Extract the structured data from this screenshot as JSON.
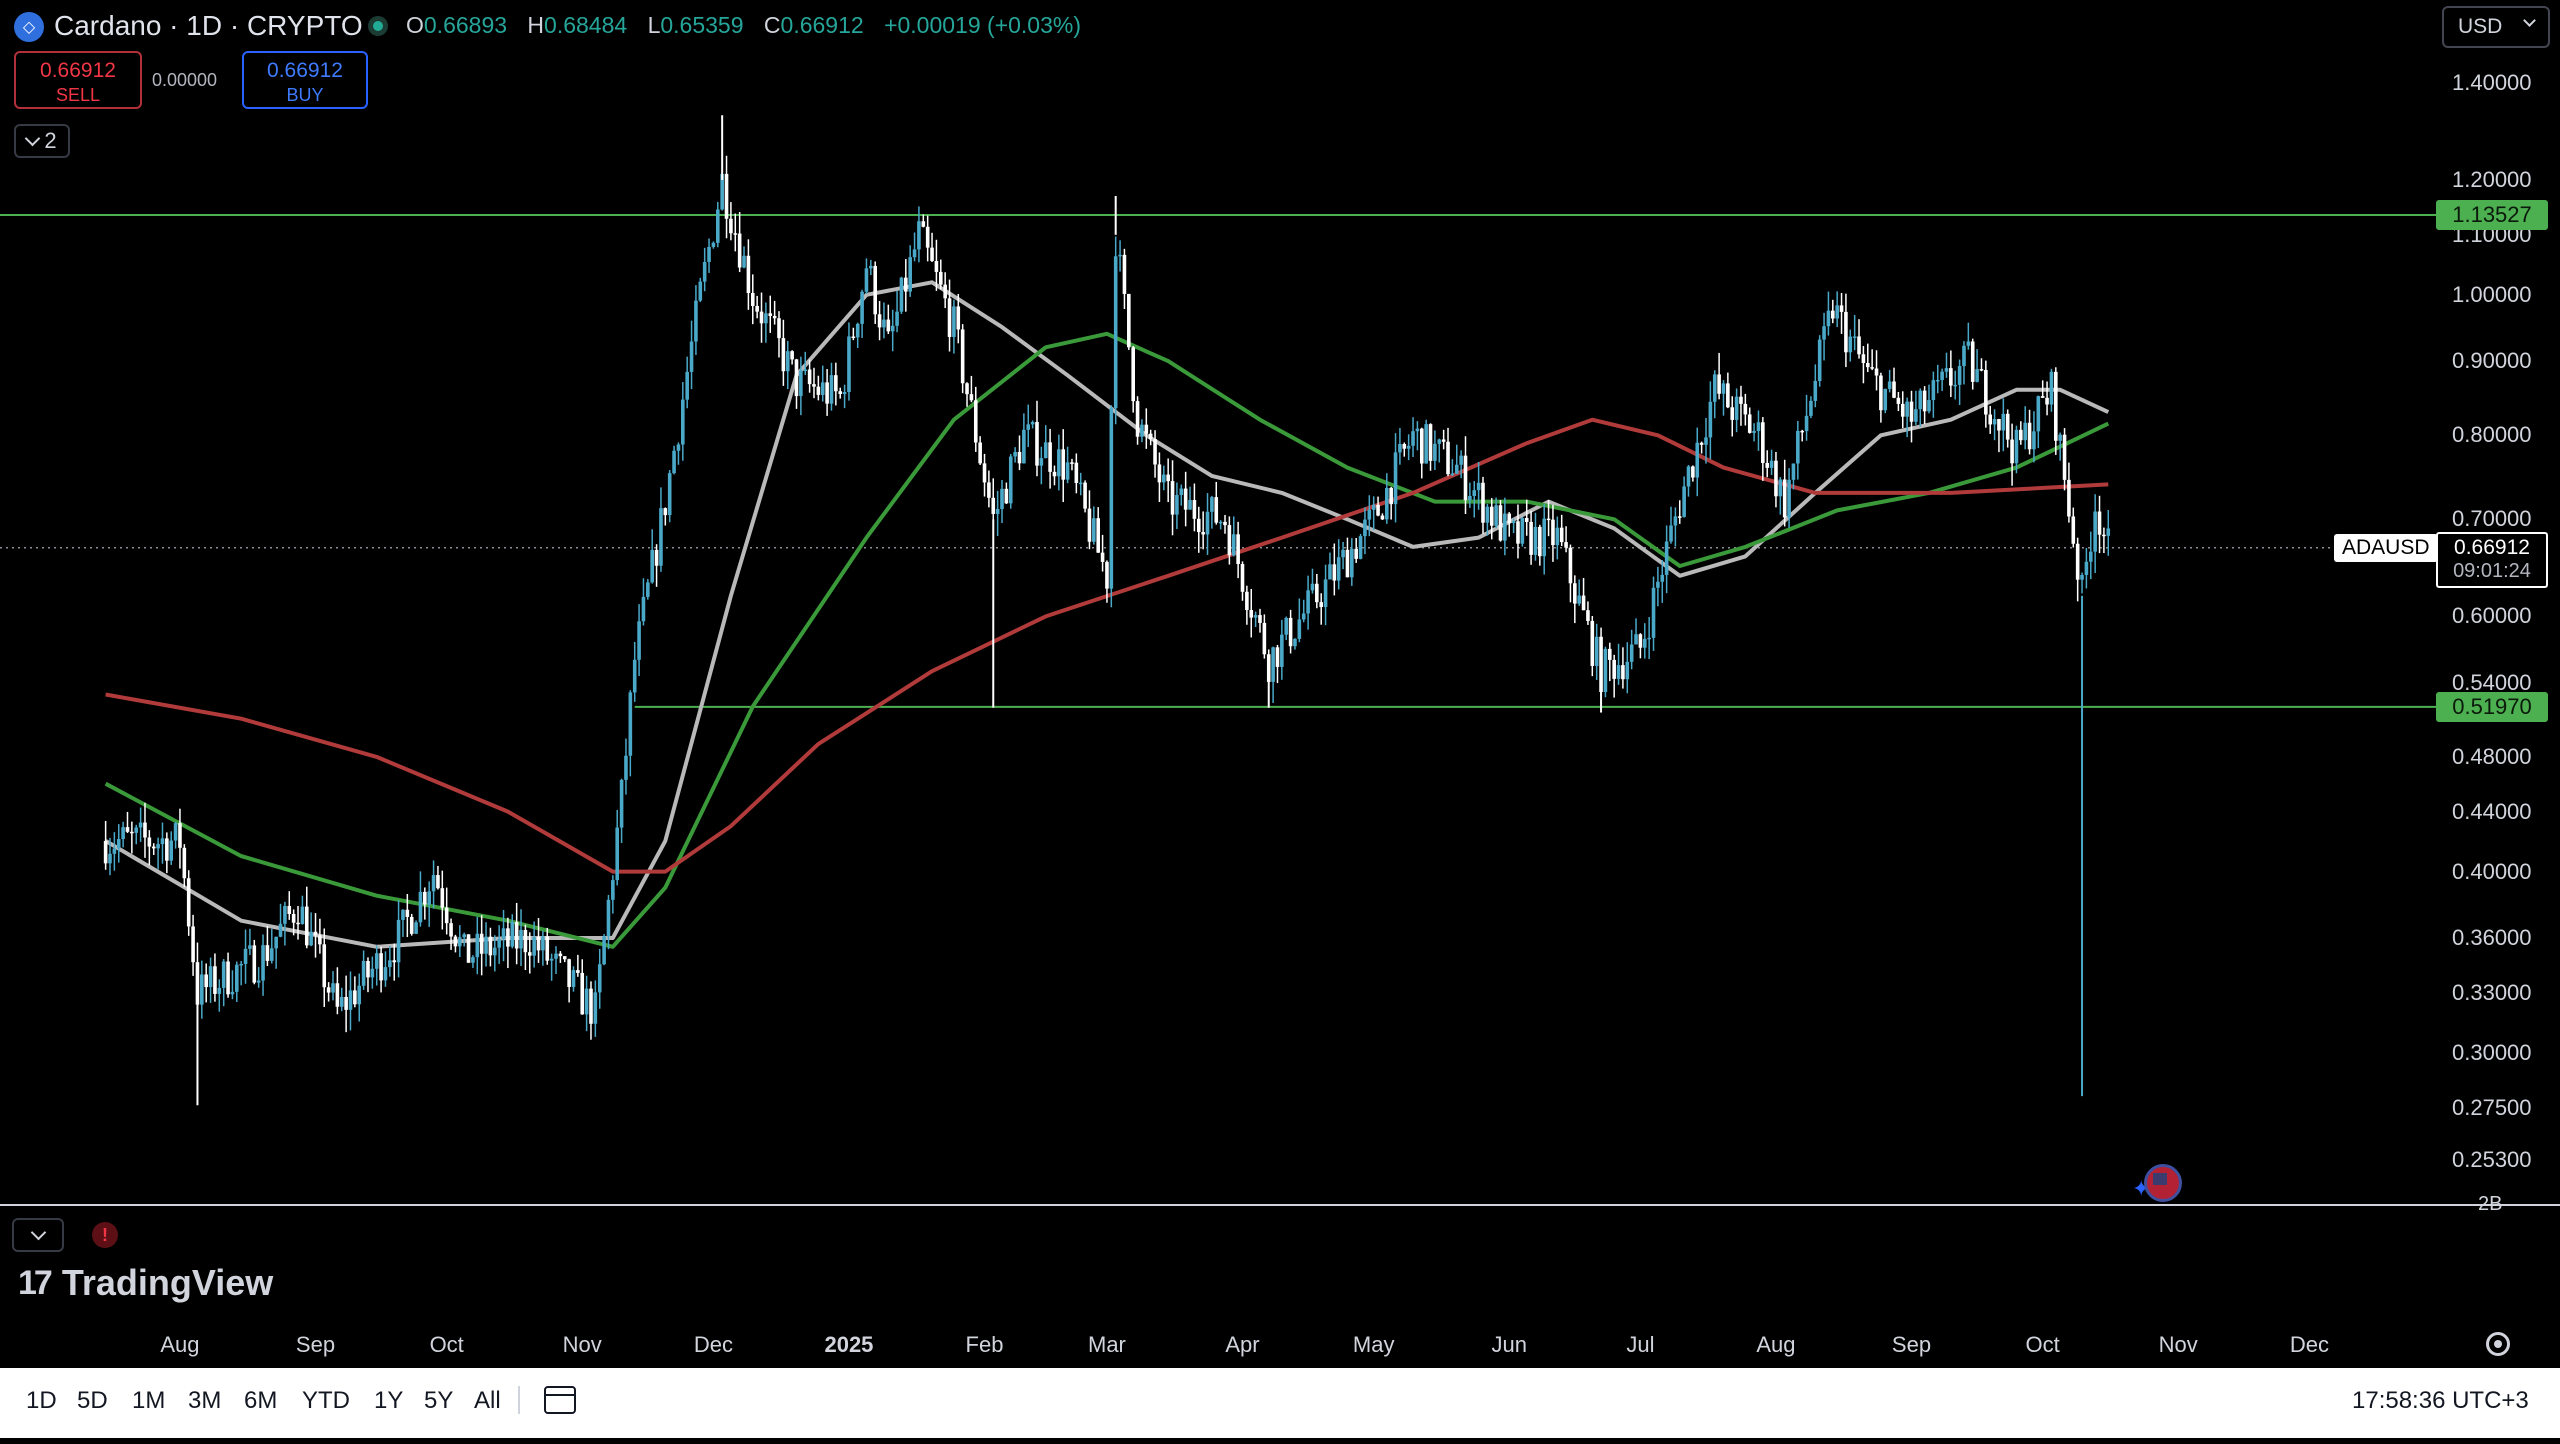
{
  "header": {
    "symbol_glyph": "◇",
    "title": "Cardano · 1D · CRYPTO",
    "ohlc": {
      "o_label": "O",
      "o": "0.66893",
      "h_label": "H",
      "h": "0.68484",
      "l_label": "L",
      "l": "0.65359",
      "c_label": "C",
      "c": "0.66912",
      "change": "+0.00019 (+0.03%)"
    },
    "currency": "USD"
  },
  "trade": {
    "sell_price": "0.66912",
    "sell_label": "SELL",
    "spread": "0.00000",
    "buy_price": "0.66912",
    "buy_label": "BUY"
  },
  "indicators_toggle": {
    "count": "2"
  },
  "price_axis": {
    "ticks": [
      "1.40000",
      "1.20000",
      "1.10000",
      "1.00000",
      "0.90000",
      "0.80000",
      "0.70000",
      "0.60000",
      "0.54000",
      "0.48000",
      "0.44000",
      "0.40000",
      "0.36000",
      "0.33000",
      "0.30000",
      "0.27500",
      "0.25300"
    ],
    "upper_level": "1.13527",
    "lower_level": "0.51970",
    "symbol_label": "ADAUSD",
    "current_price": "0.66912",
    "countdown": "09:01:24"
  },
  "volume_axis_label": "2B",
  "time_axis": {
    "ticks": [
      "Aug",
      "Sep",
      "Oct",
      "Nov",
      "Dec",
      "2025",
      "Feb",
      "Mar",
      "Apr",
      "May",
      "Jun",
      "Jul",
      "Aug",
      "Sep",
      "Oct",
      "Nov",
      "Dec"
    ]
  },
  "brand": {
    "name": "TradingView"
  },
  "bottom_bar": {
    "ranges": [
      "1D",
      "5D",
      "1M",
      "3M",
      "6M",
      "YTD",
      "1Y",
      "5Y",
      "All"
    ],
    "clock": "17:58:36 UTC+3"
  },
  "colors": {
    "up": "#4aa9c9",
    "down": "#ffffff",
    "ma_grey": "#b9b9b9",
    "ma_green": "#3a9a3a",
    "ma_red": "#b13a3a",
    "level": "#4caf50"
  },
  "chart_data": {
    "type": "candlestick",
    "symbol": "ADAUSD",
    "interval": "1D",
    "scale": "log",
    "ylim": [
      0.25,
      1.4
    ],
    "xlim": [
      "2024-07-15",
      "2025-12-31"
    ],
    "grid": false,
    "close_approx": [
      [
        "2024-07-15",
        0.42
      ],
      [
        "2024-08-01",
        0.42
      ],
      [
        "2024-08-05",
        0.33
      ],
      [
        "2024-08-20",
        0.35
      ],
      [
        "2024-08-28",
        0.38
      ],
      [
        "2024-09-06",
        0.32
      ],
      [
        "2024-09-20",
        0.36
      ],
      [
        "2024-09-28",
        0.4
      ],
      [
        "2024-10-05",
        0.35
      ],
      [
        "2024-10-20",
        0.36
      ],
      [
        "2024-11-04",
        0.32
      ],
      [
        "2024-11-10",
        0.45
      ],
      [
        "2024-11-13",
        0.56
      ],
      [
        "2024-11-20",
        0.72
      ],
      [
        "2024-11-28",
        1.0
      ],
      [
        "2024-12-03",
        1.2
      ],
      [
        "2024-12-10",
        1.0
      ],
      [
        "2024-12-20",
        0.87
      ],
      [
        "2024-12-30",
        0.85
      ],
      [
        "2025-01-05",
        1.05
      ],
      [
        "2025-01-10",
        0.92
      ],
      [
        "2025-01-17",
        1.1
      ],
      [
        "2025-01-25",
        0.95
      ],
      [
        "2025-02-03",
        0.7
      ],
      [
        "2025-02-10",
        0.8
      ],
      [
        "2025-02-20",
        0.76
      ],
      [
        "2025-03-01",
        0.64
      ],
      [
        "2025-03-03",
        1.1
      ],
      [
        "2025-03-08",
        0.82
      ],
      [
        "2025-03-15",
        0.72
      ],
      [
        "2025-03-28",
        0.7
      ],
      [
        "2025-04-07",
        0.56
      ],
      [
        "2025-04-20",
        0.63
      ],
      [
        "2025-05-01",
        0.7
      ],
      [
        "2025-05-10",
        0.8
      ],
      [
        "2025-05-20",
        0.76
      ],
      [
        "2025-06-01",
        0.68
      ],
      [
        "2025-06-12",
        0.68
      ],
      [
        "2025-06-22",
        0.55
      ],
      [
        "2025-07-01",
        0.57
      ],
      [
        "2025-07-10",
        0.72
      ],
      [
        "2025-07-18",
        0.86
      ],
      [
        "2025-07-28",
        0.8
      ],
      [
        "2025-08-03",
        0.72
      ],
      [
        "2025-08-14",
        0.98
      ],
      [
        "2025-08-22",
        0.88
      ],
      [
        "2025-09-01",
        0.82
      ],
      [
        "2025-09-14",
        0.9
      ],
      [
        "2025-09-25",
        0.78
      ],
      [
        "2025-10-03",
        0.86
      ],
      [
        "2025-10-10",
        0.62
      ],
      [
        "2025-10-13",
        0.72
      ],
      [
        "2025-10-16",
        0.66912
      ]
    ],
    "spikes": [
      {
        "x": "2024-08-05",
        "low": 0.276
      },
      {
        "x": "2024-12-03",
        "high": 1.33
      },
      {
        "x": "2025-02-03",
        "low": 0.519
      },
      {
        "x": "2025-03-03",
        "high": 1.17
      },
      {
        "x": "2025-04-07",
        "low": 0.519
      },
      {
        "x": "2025-06-22",
        "low": 0.515
      },
      {
        "x": "2025-10-10",
        "low": 0.28
      }
    ],
    "moving_averages": [
      {
        "color": "grey",
        "values": [
          [
            "2024-07-15",
            0.42
          ],
          [
            "2024-08-15",
            0.37
          ],
          [
            "2024-09-15",
            0.355
          ],
          [
            "2024-10-15",
            0.36
          ],
          [
            "2024-11-08",
            0.36
          ],
          [
            "2024-11-20",
            0.42
          ],
          [
            "2024-12-05",
            0.62
          ],
          [
            "2024-12-20",
            0.88
          ],
          [
            "2025-01-05",
            1.0
          ],
          [
            "2025-01-20",
            1.02
          ],
          [
            "2025-02-05",
            0.95
          ],
          [
            "2025-02-20",
            0.88
          ],
          [
            "2025-03-10",
            0.8
          ],
          [
            "2025-03-25",
            0.75
          ],
          [
            "2025-04-10",
            0.73
          ],
          [
            "2025-04-25",
            0.7
          ],
          [
            "2025-05-10",
            0.67
          ],
          [
            "2025-05-25",
            0.68
          ],
          [
            "2025-06-10",
            0.72
          ],
          [
            "2025-06-25",
            0.69
          ],
          [
            "2025-07-10",
            0.64
          ],
          [
            "2025-07-25",
            0.66
          ],
          [
            "2025-08-10",
            0.73
          ],
          [
            "2025-08-25",
            0.8
          ],
          [
            "2025-09-10",
            0.82
          ],
          [
            "2025-09-25",
            0.86
          ],
          [
            "2025-10-05",
            0.86
          ],
          [
            "2025-10-16",
            0.83
          ]
        ]
      },
      {
        "color": "green",
        "values": [
          [
            "2024-07-15",
            0.46
          ],
          [
            "2024-08-15",
            0.41
          ],
          [
            "2024-09-15",
            0.385
          ],
          [
            "2024-10-15",
            0.37
          ],
          [
            "2024-11-08",
            0.355
          ],
          [
            "2024-11-20",
            0.39
          ],
          [
            "2024-12-10",
            0.52
          ],
          [
            "2025-01-05",
            0.68
          ],
          [
            "2025-01-25",
            0.82
          ],
          [
            "2025-02-15",
            0.92
          ],
          [
            "2025-03-01",
            0.94
          ],
          [
            "2025-03-15",
            0.9
          ],
          [
            "2025-04-05",
            0.82
          ],
          [
            "2025-04-25",
            0.76
          ],
          [
            "2025-05-15",
            0.72
          ],
          [
            "2025-06-05",
            0.72
          ],
          [
            "2025-06-25",
            0.7
          ],
          [
            "2025-07-10",
            0.65
          ],
          [
            "2025-07-25",
            0.67
          ],
          [
            "2025-08-15",
            0.71
          ],
          [
            "2025-09-05",
            0.73
          ],
          [
            "2025-09-25",
            0.76
          ],
          [
            "2025-10-16",
            0.815
          ]
        ]
      },
      {
        "color": "red",
        "values": [
          [
            "2024-07-15",
            0.53
          ],
          [
            "2024-08-15",
            0.51
          ],
          [
            "2024-09-15",
            0.48
          ],
          [
            "2024-10-15",
            0.44
          ],
          [
            "2024-11-08",
            0.4
          ],
          [
            "2024-11-20",
            0.4
          ],
          [
            "2024-12-05",
            0.43
          ],
          [
            "2024-12-25",
            0.49
          ],
          [
            "2025-01-20",
            0.55
          ],
          [
            "2025-02-15",
            0.6
          ],
          [
            "2025-03-15",
            0.64
          ],
          [
            "2025-04-10",
            0.68
          ],
          [
            "2025-05-10",
            0.73
          ],
          [
            "2025-06-05",
            0.79
          ],
          [
            "2025-06-20",
            0.82
          ],
          [
            "2025-07-05",
            0.8
          ],
          [
            "2025-07-20",
            0.76
          ],
          [
            "2025-08-10",
            0.73
          ],
          [
            "2025-09-10",
            0.73
          ],
          [
            "2025-10-16",
            0.74
          ]
        ]
      }
    ],
    "horizontal_levels": [
      {
        "value": 1.13527
      },
      {
        "value": 0.5197,
        "from": "2024-11-13"
      }
    ],
    "current_price": 0.66912
  }
}
